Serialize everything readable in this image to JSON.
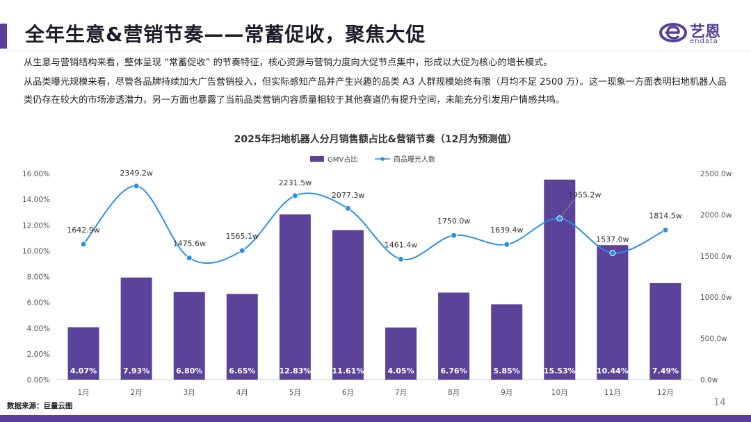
{
  "header": {
    "title": "全年生意&营销节奏——常蓄促收，聚焦大促",
    "logo_cn": "艺恩",
    "logo_en": "endata"
  },
  "body_text": {
    "p1": "从生意与营销结构来看，整体呈现 “常蓄促收” 的节奏特征，核心资源与营销力度向大促节点集中，形成以大促为核心的增长模式。",
    "p2": "从品类曝光规模来看，尽管各品牌持续加大广告营销投入，但实际感知产品并产生兴趣的品类 A3 人群规模始终有限（月均不足 2500 万）。这一现象一方面表明扫地机器人品类仍存在较大的市场渗透潜力，另一方面也暴露了当前品类营销内容质量相较于其他赛道仍有提升空间，未能充分引发用户情感共鸣。"
  },
  "footer": {
    "source": "数据来源：巨量云图",
    "page_number": "14"
  },
  "colors": {
    "bar": "#5b4399",
    "line": "#2b8fe6",
    "accent": "#5a3e9a"
  },
  "chart_data": {
    "type": "bar",
    "title": "2025年扫地机器人分月销售额占比&营销节奏（12月为预测值）",
    "categories": [
      "1月",
      "2月",
      "3月",
      "4月",
      "5月",
      "6月",
      "7月",
      "8月",
      "9月",
      "10月",
      "11月",
      "12月"
    ],
    "legend": {
      "placement": "top-center"
    },
    "series": [
      {
        "name": "GMV占比",
        "type": "bar",
        "axis": "left",
        "values": [
          4.07,
          7.93,
          6.8,
          6.65,
          12.83,
          11.61,
          4.05,
          6.76,
          5.85,
          15.53,
          10.44,
          7.49
        ],
        "labels": [
          "4.07%",
          "7.93%",
          "6.80%",
          "6.65%",
          "12.83%",
          "11.61%",
          "4.05%",
          "6.76%",
          "5.85%",
          "15.53%",
          "10.44%",
          "7.49%"
        ]
      },
      {
        "name": "商品曝光人数",
        "type": "line",
        "axis": "right",
        "smooth": true,
        "values": [
          1642.9,
          2349.2,
          1475.6,
          1565.1,
          2231.5,
          2077.3,
          1461.4,
          1750.0,
          1639.4,
          1955.2,
          1537.0,
          1814.5
        ],
        "labels": [
          "1642.9w",
          "2349.2w",
          "1475.6w",
          "1565.1w",
          "2231.5w",
          "2077.3w",
          "1461.4w",
          "1750.0w",
          "1639.4w",
          "1955.2w",
          "1537.0w",
          "1814.5w"
        ]
      }
    ],
    "y_left": {
      "ylim": [
        0,
        16
      ],
      "ticks": [
        "0.00%",
        "2.00%",
        "4.00%",
        "6.00%",
        "8.00%",
        "10.00%",
        "12.00%",
        "14.00%",
        "16.00%"
      ]
    },
    "y_right": {
      "ylim": [
        0,
        2500
      ],
      "ticks": [
        "0.0w",
        "500.0w",
        "1000.0w",
        "1500.0w",
        "2000.0w",
        "2500.0w"
      ]
    },
    "grid": false
  }
}
